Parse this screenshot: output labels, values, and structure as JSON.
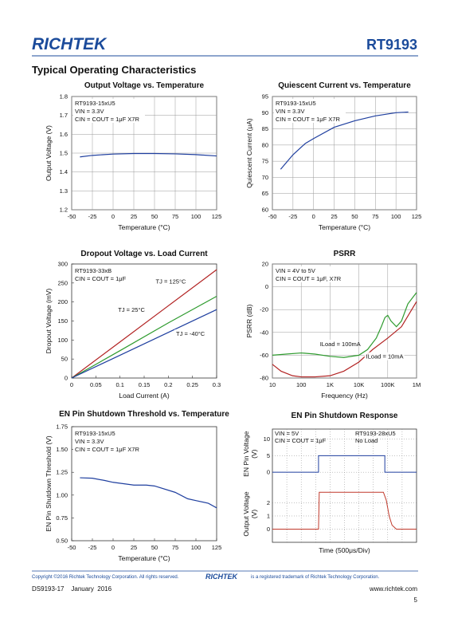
{
  "header": {
    "logo": "RICHTEK",
    "part": "RT9193"
  },
  "section_title": "Typical Operating Characteristics",
  "chart_data": [
    {
      "type": "line",
      "title": "Output Voltage vs. Temperature",
      "xlabel": "Temperature (°C)",
      "ylabel": "Output Voltage (V)",
      "xlim": [
        -50,
        125
      ],
      "xticks": [
        -50,
        -25,
        0,
        25,
        50,
        75,
        100,
        125
      ],
      "ylim": [
        1.2,
        1.8
      ],
      "yticks": [
        1.2,
        1.3,
        1.4,
        1.5,
        1.6,
        1.7,
        1.8
      ],
      "grid": true,
      "annotations": [
        "RT9193-15xU5",
        "VIN = 3.3V",
        "CIN = COUT = 1μF X7R"
      ],
      "series": [
        {
          "color": "#1f3f9f",
          "x": [
            -40,
            -25,
            0,
            25,
            50,
            75,
            100,
            125
          ],
          "values": [
            1.48,
            1.488,
            1.495,
            1.498,
            1.498,
            1.496,
            1.492,
            1.485
          ]
        }
      ]
    },
    {
      "type": "line",
      "title": "Quiescent Current vs. Temperature",
      "xlabel": "Temperature (°C)",
      "ylabel": "Quiescent Current (μA)",
      "xlim": [
        -50,
        125
      ],
      "xticks": [
        -50,
        -25,
        0,
        25,
        50,
        75,
        100,
        125
      ],
      "ylim": [
        60,
        95
      ],
      "yticks": [
        60,
        65,
        70,
        75,
        80,
        85,
        90,
        95
      ],
      "grid": true,
      "annotations": [
        "RT9193-15xU5",
        "VIN = 3.3V",
        "CIN = COUT = 1μF X7R"
      ],
      "series": [
        {
          "color": "#1f3f9f",
          "x": [
            -40,
            -25,
            -10,
            0,
            25,
            50,
            75,
            100,
            115
          ],
          "values": [
            72.5,
            77,
            80.5,
            82,
            85.5,
            87.5,
            89,
            90,
            90.2
          ]
        }
      ]
    },
    {
      "type": "line",
      "title": "Dropout Voltage vs. Load Current",
      "xlabel": "Load Current (A)",
      "ylabel": "Dropout Voltage  (mV)",
      "xlim": [
        0,
        0.3
      ],
      "xticks": [
        0,
        0.05,
        0.1,
        0.15,
        0.2,
        0.25,
        0.3
      ],
      "ylim": [
        0,
        300
      ],
      "yticks": [
        0,
        50,
        100,
        150,
        200,
        250,
        300
      ],
      "grid": false,
      "annotations": [
        "RT9193-33xB",
        "CIN = COUT = 1μF"
      ],
      "series": [
        {
          "name": "TJ = 125°C",
          "color": "#b22222",
          "x": [
            0,
            0.1,
            0.2,
            0.3
          ],
          "values": [
            0,
            95,
            190,
            285
          ]
        },
        {
          "name": "TJ = 25°C",
          "color": "#2e9b2e",
          "x": [
            0,
            0.1,
            0.2,
            0.3
          ],
          "values": [
            0,
            72,
            145,
            215
          ]
        },
        {
          "name": "TJ = -40°C",
          "color": "#1f3f9f",
          "x": [
            0,
            0.1,
            0.2,
            0.3
          ],
          "values": [
            0,
            60,
            120,
            180
          ]
        }
      ]
    },
    {
      "type": "line",
      "title": "PSRR",
      "xlabel": "Frequency (Hz)",
      "ylabel": "PSRR (dB)",
      "xscale": "log",
      "xlim": [
        10,
        1000000
      ],
      "xticks": [
        10,
        100,
        {
          "value": 1000,
          "label": "1K"
        },
        {
          "value": 10000,
          "label": "10K"
        },
        {
          "value": 100000,
          "label": "100K"
        },
        {
          "value": 1000000,
          "label": "1M"
        }
      ],
      "ylim": [
        -80,
        20
      ],
      "yticks": [
        -80,
        -60,
        -40,
        -20,
        0,
        20
      ],
      "grid": true,
      "annotations": [
        "VIN = 4V to 5V",
        "CIN = COUT = 1μF, X7R"
      ],
      "series": [
        {
          "name": "ILoad = 100mA",
          "color": "#2e9b2e",
          "x": [
            10,
            30,
            100,
            300,
            1000,
            3000,
            10000,
            20000,
            40000,
            60000,
            80000,
            100000,
            130000,
            200000,
            300000,
            500000,
            1000000
          ],
          "values": [
            -60,
            -59,
            -58,
            -59,
            -61,
            -62,
            -60,
            -55,
            -45,
            -35,
            -27,
            -25,
            -30,
            -35,
            -30,
            -15,
            -5
          ]
        },
        {
          "name": "ILoad = 10mA",
          "color": "#b22222",
          "x": [
            10,
            20,
            50,
            100,
            300,
            1000,
            3000,
            10000,
            30000,
            100000,
            300000,
            1000000
          ],
          "values": [
            -68,
            -74,
            -78,
            -79,
            -79,
            -78,
            -74,
            -66,
            -55,
            -45,
            -35,
            -13
          ]
        }
      ]
    },
    {
      "type": "line",
      "title": "EN Pin Shutdown Threshold vs. Temperature",
      "xlabel": "Temperature (°C)",
      "ylabel": "EN Pin Shutdown Threshold (V)",
      "xlim": [
        -50,
        125
      ],
      "xticks": [
        -50,
        -25,
        0,
        25,
        50,
        75,
        100,
        125
      ],
      "ylim": [
        0.5,
        1.75
      ],
      "yticks": [
        {
          "value": 0.5,
          "label": "0.50"
        },
        {
          "value": 0.75,
          "label": "0.75"
        },
        {
          "value": 1,
          "label": "1.00"
        },
        {
          "value": 1.25,
          "label": "1.25"
        },
        {
          "value": 1.5,
          "label": "1.50"
        },
        {
          "value": 1.75,
          "label": "1.75"
        }
      ],
      "grid": false,
      "annotations": [
        "RT9193-15xU5",
        "VIN = 3.3V",
        "CIN = COUT = 1μF X7R"
      ],
      "series": [
        {
          "color": "#1f3f9f",
          "x": [
            -40,
            -25,
            -10,
            0,
            25,
            40,
            50,
            75,
            90,
            100,
            115,
            125
          ],
          "values": [
            1.19,
            1.185,
            1.16,
            1.14,
            1.11,
            1.11,
            1.1,
            1.03,
            0.96,
            0.94,
            0.91,
            0.86
          ]
        }
      ]
    },
    {
      "type": "scope",
      "title": "EN Pin Shutdown Response",
      "xlabel": "Time (500μs/Div)",
      "xlim": [
        0,
        10
      ],
      "annotations": [
        "VIN = 5V",
        "CIN = COUT = 1μF"
      ],
      "annotations_right": [
        "RT9193-28xU5",
        "No Load"
      ],
      "panes": [
        {
          "ylabel": [
            "EN Pin Voltage",
            "(V)"
          ],
          "ylim": [
            -2,
            13
          ],
          "yticks": [
            0,
            5,
            10
          ],
          "color": "#1f3f9f",
          "x": [
            0,
            3.2,
            3.2,
            7.8,
            7.8,
            10
          ],
          "values": [
            0,
            0,
            5,
            5,
            0,
            0
          ]
        },
        {
          "ylabel": [
            "Output Voltage",
            "(V)"
          ],
          "ylim": [
            -1,
            3.3
          ],
          "yticks": [
            0,
            1,
            2
          ],
          "color": "#c0392b",
          "x": [
            0,
            3.2,
            3.25,
            7.7,
            7.9,
            8.1,
            8.3,
            8.6,
            10
          ],
          "values": [
            0,
            0,
            2.8,
            2.8,
            2.2,
            1,
            0.3,
            0,
            0
          ]
        }
      ]
    }
  ],
  "footer": {
    "copyright_left": "Copyright ©2016 Richtek Technology Corporation. All rights reserved.",
    "logo": "RICHTEK",
    "copyright_right": "is a registered trademark of Richtek Technology Corporation.",
    "doc": "DS9193-17    January  2016",
    "url": "www.richtek.com",
    "page": "5"
  }
}
